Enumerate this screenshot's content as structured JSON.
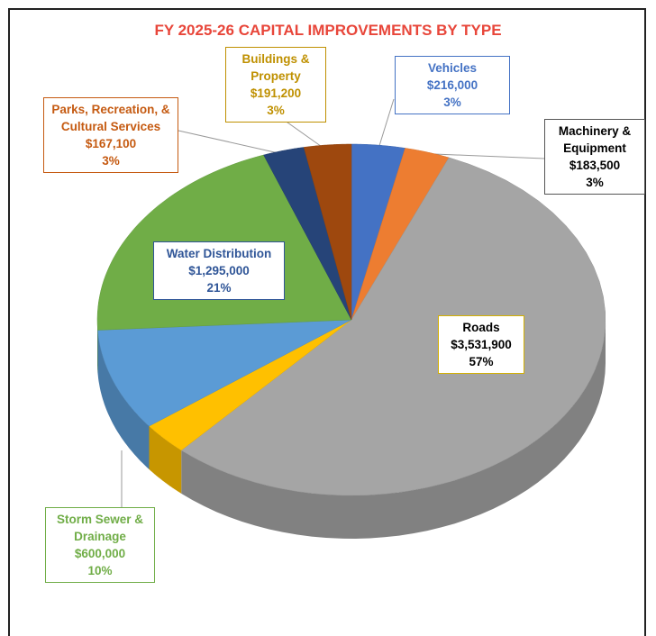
{
  "chart_data": {
    "type": "pie",
    "title": "FY 2025-26 CAPITAL IMPROVEMENTS BY TYPE",
    "categories": [
      "Vehicles",
      "Machinery & Equipment",
      "Roads",
      null,
      "Storm Sewer & Drainage",
      "Water Distribution",
      "Parks, Recreation, & Cultural Services",
      "Buildings & Property"
    ],
    "values": [
      216000,
      183500,
      3531900,
      190000,
      600000,
      1295000,
      167100,
      191200
    ],
    "value_labels": [
      "$216,000",
      "$183,500",
      "$3,531,900",
      null,
      "$600,000",
      "$1,295,000",
      "$167,100",
      "$191,200"
    ],
    "percent_labels": [
      "3%",
      "3%",
      "57%",
      null,
      "10%",
      "21%",
      "3%",
      "3%"
    ],
    "colors": [
      "#4472c4",
      "#ed7d31",
      "#a5a5a5",
      "#ffc000",
      "#5b9bd5",
      "#70ad47",
      "#264478",
      "#9e480e"
    ]
  }
}
